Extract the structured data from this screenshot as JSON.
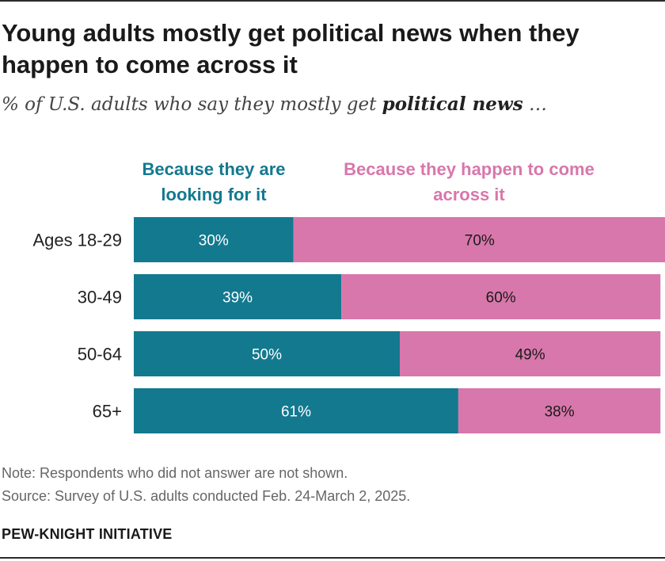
{
  "title": "Young adults mostly get political news when they happen to come across it",
  "subtitle": {
    "prefix": "% of U.S. adults who say they mostly get ",
    "emphasis": "political news",
    "suffix": " …"
  },
  "colors": {
    "looking": "#13798f",
    "across": "#d877ab"
  },
  "chart_data": {
    "type": "bar",
    "orientation": "horizontal",
    "stacked": true,
    "categories": [
      "Ages 18-29",
      "30-49",
      "50-64",
      "65+"
    ],
    "series": [
      {
        "name": "Because they are looking for it",
        "values": [
          30,
          39,
          50,
          61
        ],
        "labels": [
          "30%",
          "39%",
          "50%",
          "61%"
        ]
      },
      {
        "name": "Because they happen to come across it",
        "values": [
          70,
          60,
          49,
          38
        ],
        "labels": [
          "70%",
          "60%",
          "49%",
          "38%"
        ]
      }
    ],
    "xlim": [
      0,
      100
    ],
    "grid": false,
    "legend": "top"
  },
  "notes": {
    "note": "Note: Respondents who did not answer are not shown.",
    "source": "Source: Survey of U.S. adults conducted Feb. 24-March 2, 2025."
  },
  "brand": "PEW-KNIGHT INITIATIVE"
}
